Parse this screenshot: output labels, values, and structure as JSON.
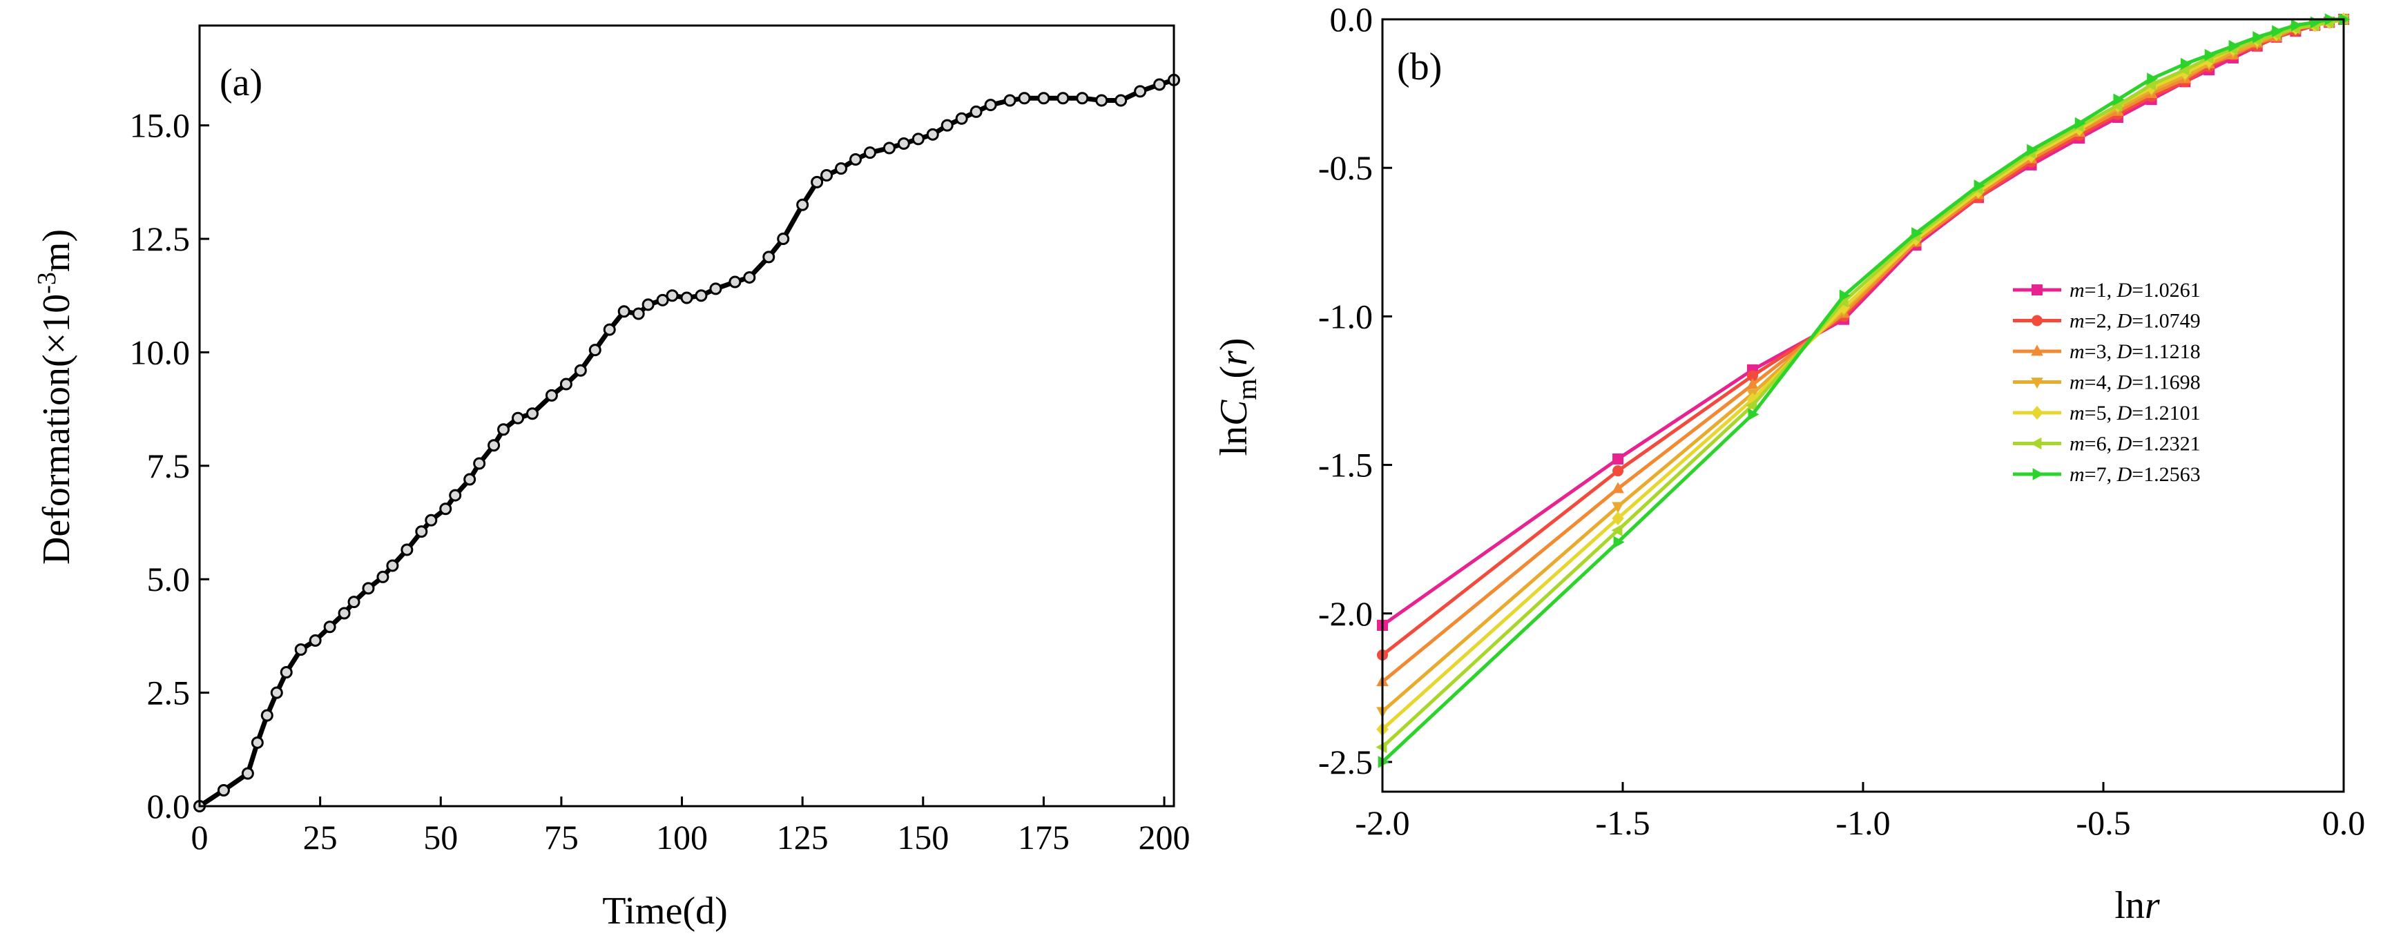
{
  "chart_data": [
    {
      "type": "line",
      "panel_label": "(a)",
      "xlabel": "Time(d)",
      "ylabel": {
        "prefix": "Deformation(×10",
        "sup": "-3",
        "suffix": "m)"
      },
      "xlim": [
        0,
        202
      ],
      "ylim": [
        0,
        17.2
      ],
      "xticks": [
        "0",
        "25",
        "50",
        "75",
        "100",
        "125",
        "150",
        "175",
        "200"
      ],
      "yticks": [
        "0.0",
        "2.5",
        "5.0",
        "7.5",
        "10.0",
        "12.5",
        "15.0"
      ],
      "series": [
        {
          "name": "Deformation",
          "color": "#000000",
          "marker": "circle",
          "x": [
            0,
            5,
            10,
            12,
            14,
            16,
            18,
            21,
            24,
            27,
            30,
            32,
            35,
            38,
            40,
            43,
            46,
            48,
            51,
            53,
            56,
            58,
            61,
            63,
            66,
            69,
            73,
            76,
            79,
            82,
            85,
            88,
            91,
            93,
            96,
            98,
            101,
            104,
            107,
            111,
            114,
            118,
            121,
            125,
            128,
            130,
            133,
            136,
            139,
            143,
            146,
            149,
            152,
            155,
            158,
            161,
            164,
            168,
            171,
            175,
            179,
            183,
            187,
            191,
            195,
            199,
            202
          ],
          "y": [
            0.0,
            0.35,
            0.72,
            1.4,
            2.0,
            2.5,
            2.95,
            3.45,
            3.65,
            3.95,
            4.25,
            4.5,
            4.8,
            5.05,
            5.3,
            5.65,
            6.05,
            6.3,
            6.55,
            6.85,
            7.2,
            7.55,
            7.95,
            8.3,
            8.55,
            8.65,
            9.05,
            9.3,
            9.6,
            10.05,
            10.5,
            10.9,
            10.85,
            11.05,
            11.15,
            11.25,
            11.2,
            11.25,
            11.4,
            11.55,
            11.65,
            12.1,
            12.5,
            13.25,
            13.75,
            13.9,
            14.05,
            14.25,
            14.4,
            14.5,
            14.6,
            14.7,
            14.8,
            15.0,
            15.15,
            15.3,
            15.45,
            15.55,
            15.6,
            15.6,
            15.6,
            15.6,
            15.55,
            15.55,
            15.75,
            15.9,
            16.0
          ]
        }
      ]
    },
    {
      "type": "line",
      "panel_label": "(b)",
      "xlabel": {
        "prefix": "ln",
        "var": "r"
      },
      "ylabel": {
        "prefix": "ln",
        "var": "C",
        "sub": "m",
        "paren_open": "(",
        "arg": "r",
        "paren_close": ")"
      },
      "xlim": [
        -2.0,
        0.0
      ],
      "ylim": [
        -2.6,
        0.0
      ],
      "xticks": [
        "-2.0",
        "-1.5",
        "-1.0",
        "-0.5",
        "0.0"
      ],
      "yticks": [
        "-2.5",
        "-2.0",
        "-1.5",
        "-1.0",
        "-0.5",
        "0.0"
      ],
      "x": [
        -2.0,
        -1.51,
        -1.23,
        -1.04,
        -0.89,
        -0.76,
        -0.65,
        -0.55,
        -0.47,
        -0.4,
        -0.33,
        -0.28,
        -0.23,
        -0.18,
        -0.14,
        -0.1,
        -0.06,
        -0.03,
        0.0
      ],
      "series": [
        {
          "name": {
            "m": "1",
            "D": "1.0261"
          },
          "color": "#e8238f",
          "marker": "square",
          "y": [
            -2.04,
            -1.48,
            -1.18,
            -1.01,
            -0.76,
            -0.6,
            -0.49,
            -0.4,
            -0.33,
            -0.27,
            -0.21,
            -0.17,
            -0.13,
            -0.09,
            -0.06,
            -0.04,
            -0.02,
            -0.01,
            0.0
          ]
        },
        {
          "name": {
            "m": "2",
            "D": "1.0749"
          },
          "color": "#f24a3d",
          "marker": "circle",
          "y": [
            -2.14,
            -1.52,
            -1.2,
            -1.0,
            -0.75,
            -0.6,
            -0.48,
            -0.39,
            -0.32,
            -0.26,
            -0.21,
            -0.16,
            -0.12,
            -0.09,
            -0.06,
            -0.04,
            -0.02,
            -0.01,
            0.0
          ]
        },
        {
          "name": {
            "m": "3",
            "D": "1.1218"
          },
          "color": "#f08a33",
          "marker": "triangle-up",
          "y": [
            -2.23,
            -1.58,
            -1.23,
            -0.99,
            -0.75,
            -0.59,
            -0.47,
            -0.38,
            -0.31,
            -0.25,
            -0.2,
            -0.15,
            -0.12,
            -0.08,
            -0.06,
            -0.03,
            -0.02,
            -0.01,
            0.0
          ]
        },
        {
          "name": {
            "m": "4",
            "D": "1.1698"
          },
          "color": "#e8ab2e",
          "marker": "triangle-down",
          "y": [
            -2.33,
            -1.64,
            -1.26,
            -0.98,
            -0.74,
            -0.58,
            -0.46,
            -0.37,
            -0.3,
            -0.24,
            -0.19,
            -0.15,
            -0.11,
            -0.08,
            -0.05,
            -0.03,
            -0.02,
            -0.01,
            0.0
          ]
        },
        {
          "name": {
            "m": "5",
            "D": "1.2101"
          },
          "color": "#e6d62e",
          "marker": "diamond",
          "y": [
            -2.39,
            -1.68,
            -1.28,
            -0.97,
            -0.74,
            -0.58,
            -0.46,
            -0.37,
            -0.29,
            -0.23,
            -0.18,
            -0.14,
            -0.1,
            -0.07,
            -0.05,
            -0.03,
            -0.02,
            -0.01,
            0.0
          ]
        },
        {
          "name": {
            "m": "6",
            "D": "1.2321"
          },
          "color": "#a8d62b",
          "marker": "triangle-left",
          "y": [
            -2.45,
            -1.72,
            -1.3,
            -0.95,
            -0.73,
            -0.57,
            -0.45,
            -0.36,
            -0.29,
            -0.22,
            -0.17,
            -0.13,
            -0.1,
            -0.07,
            -0.05,
            -0.03,
            -0.02,
            -0.01,
            0.0
          ]
        },
        {
          "name": {
            "m": "7",
            "D": "1.2563"
          },
          "color": "#2bd32b",
          "marker": "triangle-right",
          "y": [
            -2.5,
            -1.76,
            -1.33,
            -0.93,
            -0.72,
            -0.56,
            -0.44,
            -0.35,
            -0.27,
            -0.2,
            -0.15,
            -0.12,
            -0.09,
            -0.06,
            -0.04,
            -0.02,
            -0.01,
            0.0,
            0.0
          ]
        }
      ]
    }
  ]
}
